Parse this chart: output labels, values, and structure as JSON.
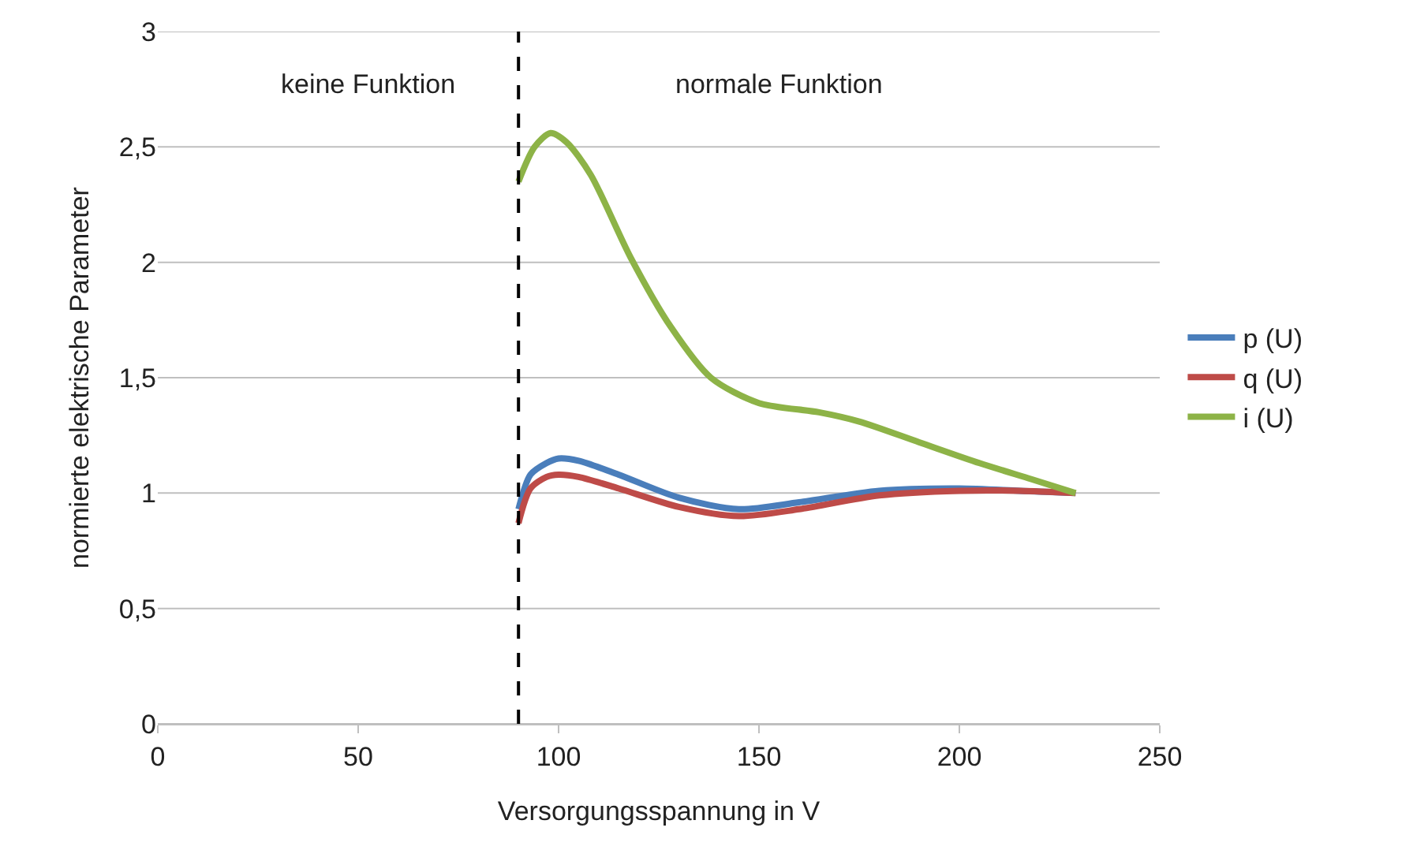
{
  "chart_data": {
    "type": "line",
    "xlabel": "Versorgungsspannung in V",
    "ylabel": "normierte elektrische Parameter",
    "xlim": [
      0,
      250
    ],
    "xticks": [
      0,
      50,
      100,
      150,
      200,
      250
    ],
    "ylim": [
      0,
      3
    ],
    "yticks": [
      0,
      {
        "value": 0.5,
        "label": "0,5"
      },
      1,
      {
        "value": 1.5,
        "label": "1,5"
      },
      2,
      {
        "value": 2.5,
        "label": "2,5"
      },
      3
    ],
    "grid": "y",
    "legend": "right",
    "marker": "none",
    "line_style": "solid",
    "series": [
      {
        "name": "p (U)",
        "color": "#4a7ebb",
        "x": [
          90,
          93,
          97,
          100,
          105,
          115,
          130,
          145,
          160,
          180,
          200,
          215,
          229
        ],
        "values": [
          0.93,
          1.08,
          1.13,
          1.15,
          1.14,
          1.08,
          0.98,
          0.93,
          0.96,
          1.01,
          1.02,
          1.01,
          1.0
        ]
      },
      {
        "name": "q (U)",
        "color": "#be4b48",
        "x": [
          90,
          93,
          97,
          100,
          105,
          115,
          130,
          145,
          160,
          180,
          200,
          215,
          229
        ],
        "values": [
          0.87,
          1.02,
          1.07,
          1.08,
          1.07,
          1.02,
          0.94,
          0.9,
          0.93,
          0.99,
          1.01,
          1.01,
          1.0
        ]
      },
      {
        "name": "i (U)",
        "color": "#8db347",
        "x": [
          90,
          94,
          98,
          102,
          108,
          118,
          128,
          138,
          150,
          165,
          175,
          190,
          205,
          218,
          229
        ],
        "values": [
          2.35,
          2.5,
          2.56,
          2.52,
          2.38,
          2.02,
          1.72,
          1.5,
          1.39,
          1.35,
          1.31,
          1.22,
          1.13,
          1.06,
          1.0
        ]
      }
    ],
    "ref_lines": [
      {
        "axis": "x",
        "value": 90,
        "color": "#000000",
        "line_style": "dashed"
      }
    ],
    "annotations": [
      "keine Funktion",
      "normale Funktion"
    ]
  }
}
